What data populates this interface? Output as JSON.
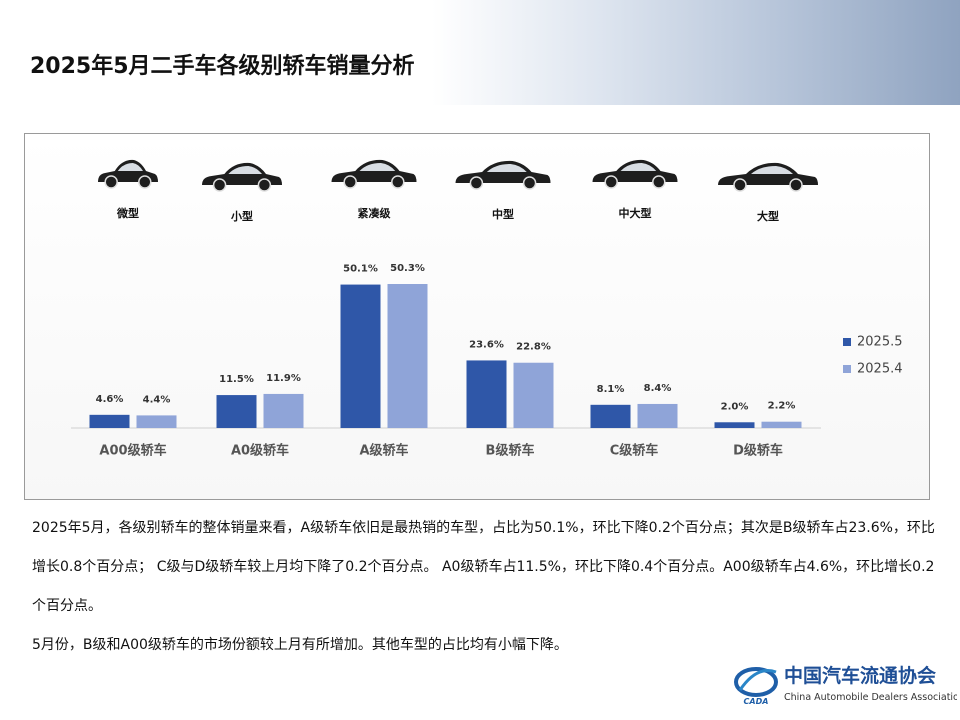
{
  "header": {
    "title": "2025年5月二手车各级别轿车销量分析"
  },
  "icons": [
    "微型",
    "小型",
    "紧凑级",
    "中型",
    "中大型",
    "大型"
  ],
  "chart_data": {
    "type": "bar",
    "categories": [
      "A00级轿车",
      "A0级轿车",
      "A级轿车",
      "B级轿车",
      "C级轿车",
      "D级轿车"
    ],
    "series": [
      {
        "name": "2025.5",
        "color": "#2f57a8",
        "values": [
          4.6,
          11.5,
          50.1,
          23.6,
          8.1,
          2.0
        ],
        "value_labels": [
          "4.6%",
          "11.5%",
          "50.1%",
          "23.6%",
          "8.1%",
          "2.0%"
        ]
      },
      {
        "name": "2025.4",
        "color": "#8fa4d8",
        "values": [
          4.4,
          11.9,
          50.3,
          22.8,
          8.4,
          2.2
        ],
        "value_labels": [
          "4.4%",
          "11.9%",
          "50.3%",
          "22.8%",
          "8.4%",
          "2.2%"
        ]
      }
    ],
    "legend": "right"
  },
  "text": {
    "paragraphs": [
      "2025年5月，各级别轿车的整体销量来看，A级轿车依旧是最热销的车型，占比为50.1%，环比下降0.2个百分点；其次是B级轿车占23.6%，环比增长0.8个百分点； C级与D级轿车较上月均下降了0.2个百分点。 A0级轿车占11.5%，环比下降0.4个百分点。A00级轿车占4.6%，环比增长0.2个百分点。",
      "5月份，B级和A00级轿车的市场份额较上月有所增加。其他车型的占比均有小幅下降。"
    ]
  },
  "logo": {
    "name": "中国汽车流通协会",
    "english": "China Automobile Dealers Association",
    "mark": "CADA"
  }
}
